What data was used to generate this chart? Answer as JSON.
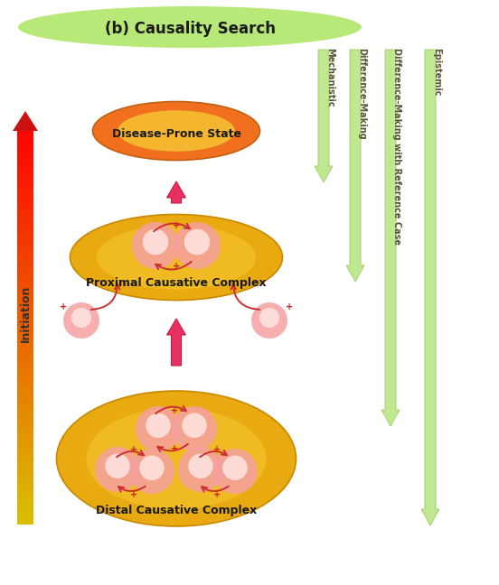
{
  "title": "(b) Causality Search",
  "bg_color": "#ffffff",
  "initiation_label": "Initiation",
  "causality_labels": [
    "Mechanistic",
    "Difference-Making",
    "Difference-Making with Reference Case",
    "Epistemic"
  ],
  "distal_label": "Distal Causative Complex",
  "proximal_label": "Proximal Causative Complex",
  "disease_label": "Disease-Prone State",
  "green_header_color": "#b8e878",
  "gold_outer": "#e8aa10",
  "gold_inner": "#f5c832",
  "pink_main": "#f5a0a0",
  "pink_light": "#fde0e0",
  "red_arrow": "#e83060",
  "green_arrow": "#c0e890",
  "green_arrow_edge": "#a0c860",
  "red_curve": "#cc3030",
  "plus_color": "#cc2020",
  "disease_orange": "#f07020",
  "disease_yellow": "#f5c832"
}
